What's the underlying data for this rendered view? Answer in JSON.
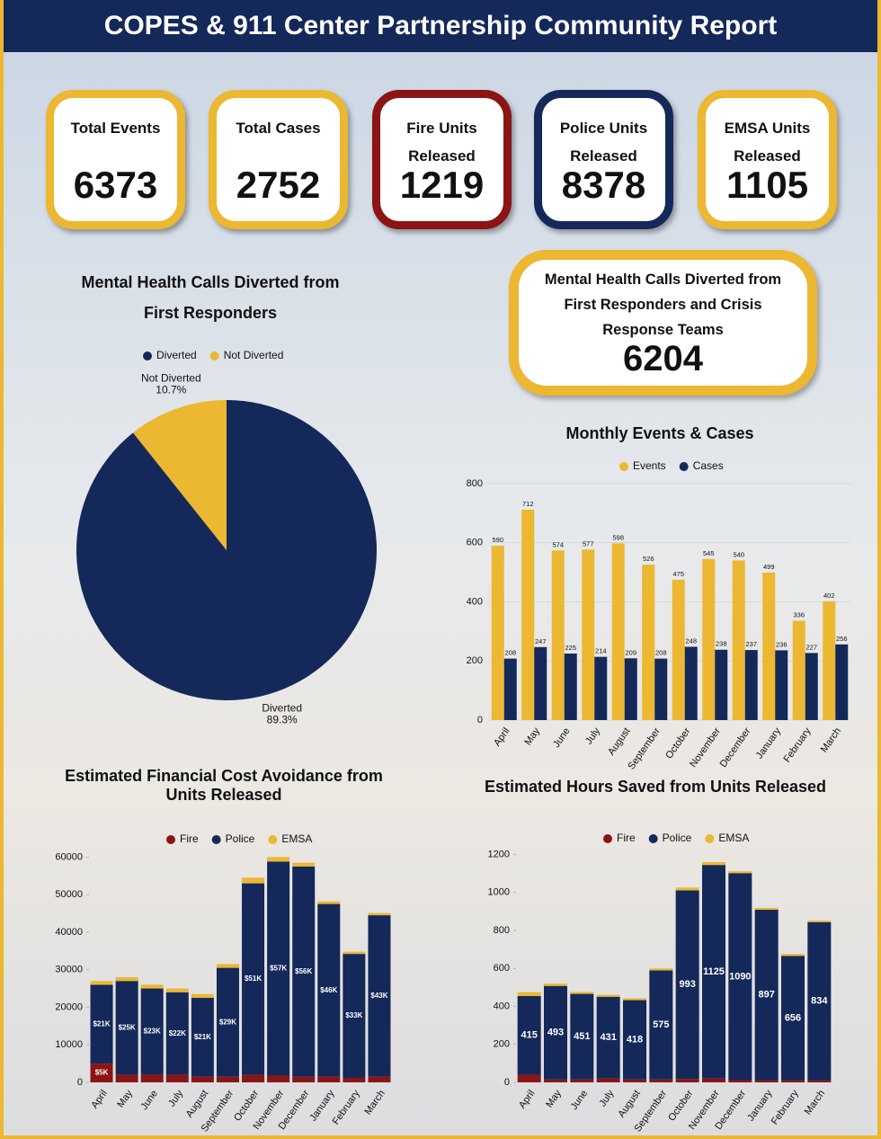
{
  "title": "COPES & 911 Center Partnership Community Report",
  "stats": [
    {
      "label": "Total Events",
      "value": 6373
    },
    {
      "label": "Total Cases",
      "value": 2752
    },
    {
      "label": "Fire Units Released",
      "value": 1219
    },
    {
      "label": "Police Units Released",
      "value": 8378
    },
    {
      "label": "EMSA Units Released",
      "value": 1105
    }
  ],
  "highlight": {
    "label": "Mental Health Calls Diverted from First Responders and Crisis Response Teams",
    "value": 6204
  },
  "chart_data": [
    {
      "type": "pie",
      "title": "Mental Health Calls Diverted from First Responders",
      "categories": [
        "Diverted",
        "Not Diverted"
      ],
      "values": [
        89.3,
        10.7
      ],
      "value_labels": [
        "89.3%",
        "10.7%"
      ],
      "colors": [
        "#14285a",
        "#ecb731"
      ]
    },
    {
      "type": "bar",
      "title": "Monthly Events & Cases",
      "categories": [
        "April",
        "May",
        "June",
        "July",
        "August",
        "September",
        "October",
        "November",
        "December",
        "January",
        "February",
        "March"
      ],
      "series": [
        {
          "name": "Events",
          "color": "#ecb731",
          "data_labels": true,
          "values": [
            590,
            712,
            574,
            577,
            598,
            526,
            475,
            545,
            540,
            499,
            336,
            402
          ]
        },
        {
          "name": "Cases",
          "color": "#14285a",
          "data_labels": true,
          "values": [
            208,
            247,
            225,
            214,
            209,
            208,
            248,
            238,
            237,
            236,
            227,
            256
          ]
        }
      ],
      "ylim": [
        0,
        800
      ],
      "yticks": [
        0,
        200,
        400,
        600,
        800
      ],
      "grid": true
    },
    {
      "type": "bar",
      "stacked": true,
      "title": "Estimated Financial Cost Avoidance from Units Released",
      "categories": [
        "April",
        "May",
        "June",
        "July",
        "August",
        "September",
        "October",
        "November",
        "December",
        "January",
        "February",
        "March"
      ],
      "series": [
        {
          "name": "Fire",
          "color": "#8b1414",
          "values": [
            5000,
            2000,
            2000,
            2000,
            1500,
            1500,
            2000,
            1800,
            1500,
            1500,
            1200,
            1500
          ],
          "value_labels": [
            "$5K",
            null,
            null,
            null,
            null,
            null,
            null,
            null,
            null,
            null,
            null,
            null
          ]
        },
        {
          "name": "Police",
          "color": "#14285a",
          "values": [
            21000,
            25000,
            23000,
            22000,
            21000,
            29000,
            51000,
            57000,
            56000,
            46000,
            33000,
            43000
          ],
          "value_labels": [
            "$21K",
            "$25K",
            "$23K",
            "$22K",
            "$21K",
            "$29K",
            "$51K",
            "$57K",
            "$56K",
            "$46K",
            "$33K",
            "$43K"
          ]
        },
        {
          "name": "EMSA",
          "color": "#ecb731",
          "values": [
            1000,
            1000,
            1000,
            1000,
            1000,
            1000,
            1500,
            1200,
            1000,
            700,
            600,
            600
          ]
        }
      ],
      "ylim": [
        0,
        62000
      ],
      "yticks": [
        0,
        10000,
        20000,
        30000,
        40000,
        50000,
        60000
      ],
      "grid": false
    },
    {
      "type": "bar",
      "stacked": true,
      "title": "Estimated Hours Saved from Units Released",
      "categories": [
        "April",
        "May",
        "June",
        "July",
        "August",
        "September",
        "October",
        "November",
        "December",
        "January",
        "February",
        "March"
      ],
      "series": [
        {
          "name": "Fire",
          "color": "#8b1414",
          "values": [
            40,
            15,
            15,
            20,
            15,
            15,
            18,
            20,
            12,
            12,
            10,
            10
          ]
        },
        {
          "name": "Police",
          "color": "#14285a",
          "data_labels": true,
          "values": [
            415,
            493,
            451,
            431,
            418,
            575,
            993,
            1125,
            1090,
            897,
            656,
            834
          ]
        },
        {
          "name": "EMSA",
          "color": "#ecb731",
          "values": [
            20,
            12,
            10,
            10,
            10,
            10,
            15,
            15,
            10,
            10,
            10,
            8
          ]
        }
      ],
      "ylim": [
        0,
        1250
      ],
      "yticks": [
        0,
        200,
        400,
        600,
        800,
        1000,
        1200
      ],
      "grid": false
    }
  ]
}
